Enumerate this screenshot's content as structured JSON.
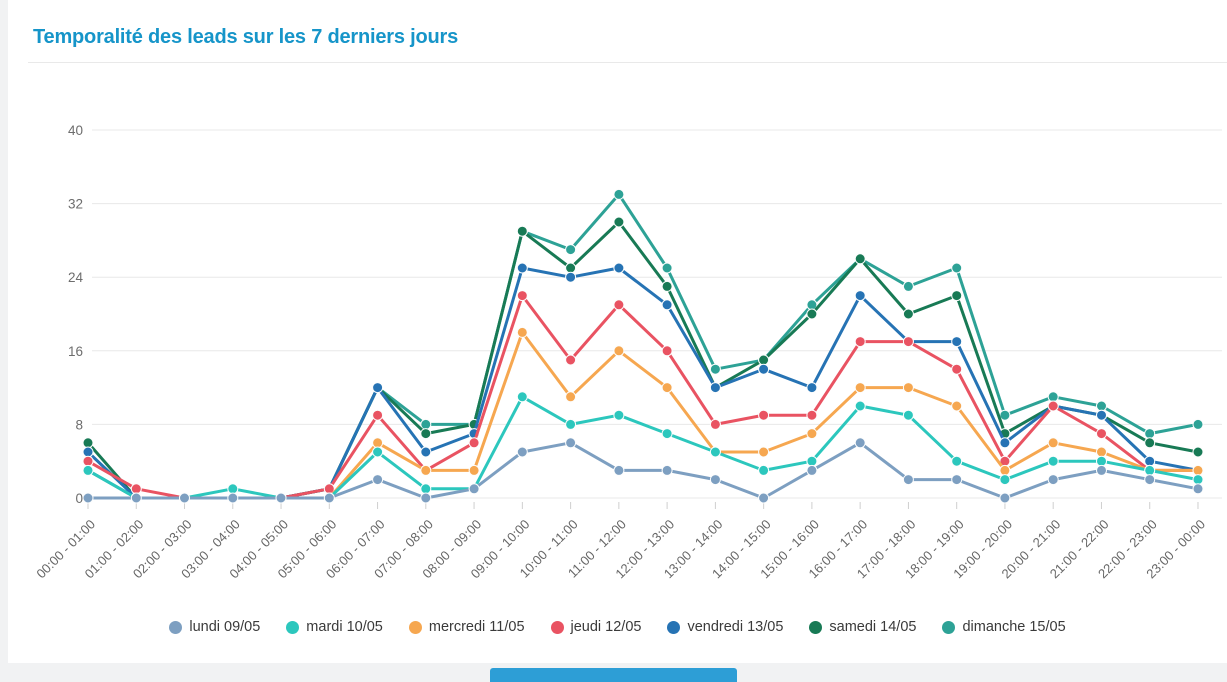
{
  "page": {
    "title": "Temporalité des leads sur les 7 derniers jours",
    "accent_color": "#1695c9"
  },
  "chart_data": {
    "type": "line",
    "title": "Temporalité des leads sur les 7 derniers jours",
    "categories": [
      "00:00 - 01:00",
      "01:00 - 02:00",
      "02:00 - 03:00",
      "03:00 - 04:00",
      "04:00 - 05:00",
      "05:00 - 06:00",
      "06:00 - 07:00",
      "07:00 - 08:00",
      "08:00 - 09:00",
      "09:00 - 10:00",
      "10:00 - 11:00",
      "11:00 - 12:00",
      "12:00 - 13:00",
      "13:00 - 14:00",
      "14:00 - 15:00",
      "15:00 - 16:00",
      "16:00 - 17:00",
      "17:00 - 18:00",
      "18:00 - 19:00",
      "19:00 - 20:00",
      "20:00 - 21:00",
      "21:00 - 22:00",
      "22:00 - 23:00",
      "23:00 - 00:00"
    ],
    "series": [
      {
        "name": "lundi 09/05",
        "color": "#7d9fc1",
        "values": [
          0,
          0,
          0,
          0,
          0,
          0,
          2,
          0,
          1,
          5,
          6,
          3,
          3,
          2,
          0,
          3,
          6,
          2,
          2,
          0,
          2,
          3,
          2,
          1
        ]
      },
      {
        "name": "mardi 10/05",
        "color": "#2cc7bd",
        "values": [
          3,
          0,
          0,
          1,
          0,
          0,
          5,
          1,
          1,
          11,
          8,
          9,
          7,
          5,
          3,
          4,
          10,
          9,
          4,
          2,
          4,
          4,
          3,
          2
        ]
      },
      {
        "name": "mercredi 11/05",
        "color": "#f6a750",
        "values": [
          0,
          0,
          0,
          0,
          0,
          0,
          6,
          3,
          3,
          18,
          11,
          16,
          12,
          5,
          5,
          7,
          12,
          12,
          10,
          3,
          6,
          5,
          3,
          3
        ]
      },
      {
        "name": "jeudi 12/05",
        "color": "#e95362",
        "values": [
          4,
          1,
          0,
          0,
          0,
          1,
          9,
          3,
          6,
          22,
          15,
          21,
          16,
          8,
          9,
          9,
          17,
          17,
          14,
          4,
          10,
          7,
          3,
          3
        ]
      },
      {
        "name": "vendredi 13/05",
        "color": "#2673b4",
        "values": [
          5,
          0,
          0,
          0,
          0,
          1,
          12,
          5,
          7,
          25,
          24,
          25,
          21,
          12,
          14,
          12,
          22,
          17,
          17,
          6,
          10,
          9,
          4,
          3
        ]
      },
      {
        "name": "samedi 14/05",
        "color": "#187a55",
        "values": [
          6,
          0,
          0,
          0,
          0,
          1,
          12,
          7,
          8,
          29,
          25,
          30,
          23,
          12,
          15,
          20,
          26,
          20,
          22,
          7,
          10,
          9,
          6,
          5
        ]
      },
      {
        "name": "dimanche 15/05",
        "color": "#2da296",
        "values": [
          3,
          0,
          0,
          0,
          0,
          1,
          12,
          8,
          8,
          29,
          27,
          33,
          25,
          14,
          15,
          21,
          26,
          23,
          25,
          9,
          11,
          10,
          7,
          8
        ]
      }
    ],
    "xlabel": "",
    "ylabel": "",
    "ylim": [
      0,
      40
    ],
    "yticks": [
      0,
      8,
      16,
      24,
      32,
      40
    ],
    "grid": true,
    "legend_position": "bottom"
  }
}
